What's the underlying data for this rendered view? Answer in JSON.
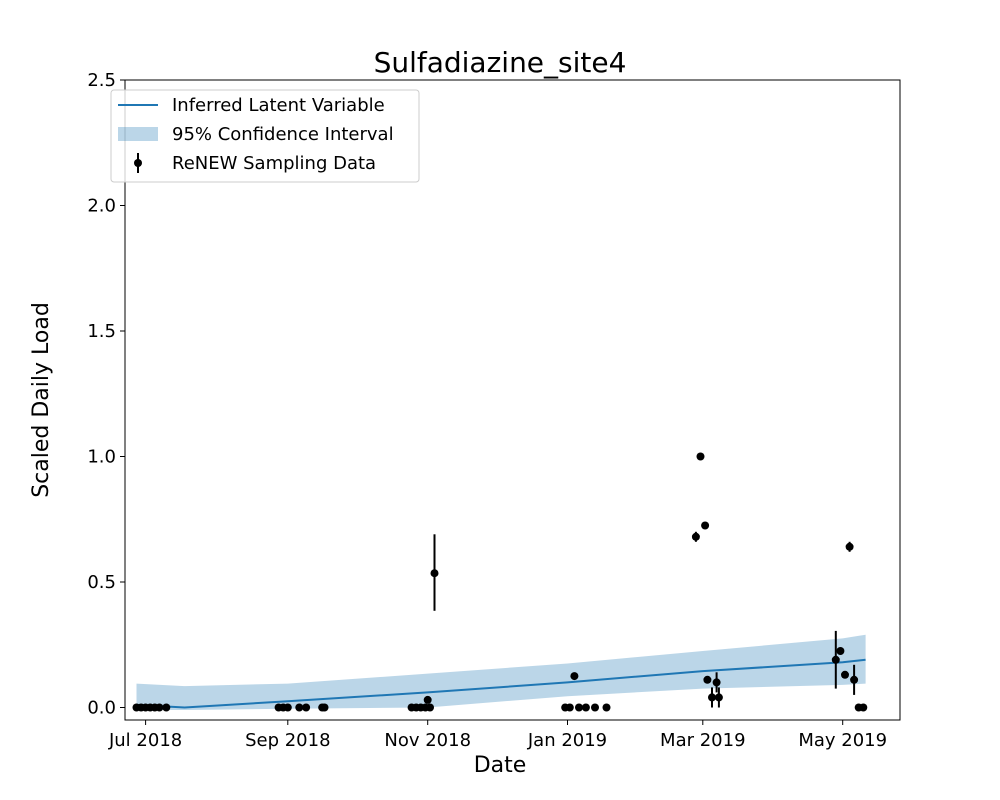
{
  "chart_data": {
    "type": "scatter",
    "title": "Sulfadiazine_site4",
    "xlabel": "Date",
    "ylabel": "Scaled Daily Load",
    "xlim": [
      "2018-06-22",
      "2019-05-26"
    ],
    "ylim": [
      -0.05,
      2.5
    ],
    "grid": false,
    "legend_position": "top-left",
    "x_ticks": [
      {
        "date": "2018-07-01",
        "label": "Jul 2018"
      },
      {
        "date": "2018-09-01",
        "label": "Sep 2018"
      },
      {
        "date": "2018-11-01",
        "label": "Nov 2018"
      },
      {
        "date": "2019-01-01",
        "label": "Jan 2019"
      },
      {
        "date": "2019-03-01",
        "label": "Mar 2019"
      },
      {
        "date": "2019-05-01",
        "label": "May 2019"
      }
    ],
    "y_ticks": [
      {
        "value": 0.0,
        "label": "0.0"
      },
      {
        "value": 0.5,
        "label": "0.5"
      },
      {
        "value": 1.0,
        "label": "1.0"
      },
      {
        "value": 1.5,
        "label": "1.5"
      },
      {
        "value": 2.0,
        "label": "2.0"
      },
      {
        "value": 2.5,
        "label": "2.5"
      }
    ],
    "legend": [
      {
        "label": "Inferred Latent Variable",
        "kind": "line"
      },
      {
        "label": "95% Confidence Interval",
        "kind": "band"
      },
      {
        "label": "ReNEW Sampling Data",
        "kind": "errorbar"
      }
    ],
    "series": [
      {
        "name": "Inferred Latent Variable",
        "kind": "line",
        "color": "#1f77b4",
        "points": [
          {
            "x": "2018-06-27",
            "y": 0.01
          },
          {
            "x": "2018-07-18",
            "y": 0.0
          },
          {
            "x": "2018-09-01",
            "y": 0.025
          },
          {
            "x": "2018-11-01",
            "y": 0.06
          },
          {
            "x": "2019-01-01",
            "y": 0.1
          },
          {
            "x": "2019-03-01",
            "y": 0.145
          },
          {
            "x": "2019-05-01",
            "y": 0.18
          },
          {
            "x": "2019-05-11",
            "y": 0.19
          }
        ]
      },
      {
        "name": "95% Confidence Interval",
        "kind": "band",
        "color": "#1f77b4",
        "points": [
          {
            "x": "2018-06-27",
            "low": -0.01,
            "high": 0.095
          },
          {
            "x": "2018-07-18",
            "low": -0.01,
            "high": 0.085
          },
          {
            "x": "2018-09-01",
            "low": -0.005,
            "high": 0.095
          },
          {
            "x": "2018-11-01",
            "low": 0.0,
            "high": 0.135
          },
          {
            "x": "2019-01-01",
            "low": 0.045,
            "high": 0.175
          },
          {
            "x": "2019-03-01",
            "low": 0.075,
            "high": 0.225
          },
          {
            "x": "2019-05-01",
            "low": 0.09,
            "high": 0.275
          },
          {
            "x": "2019-05-11",
            "low": 0.095,
            "high": 0.29
          }
        ]
      },
      {
        "name": "ReNEW Sampling Data",
        "kind": "errorbar",
        "color": "#000000",
        "points": [
          {
            "x": "2018-06-27",
            "y": 0.0
          },
          {
            "x": "2018-06-29",
            "y": 0.0
          },
          {
            "x": "2018-07-01",
            "y": 0.0
          },
          {
            "x": "2018-07-03",
            "y": 0.0
          },
          {
            "x": "2018-07-05",
            "y": 0.0
          },
          {
            "x": "2018-07-07",
            "y": 0.0
          },
          {
            "x": "2018-07-10",
            "y": 0.0
          },
          {
            "x": "2018-08-28",
            "y": 0.0
          },
          {
            "x": "2018-08-30",
            "y": 0.0
          },
          {
            "x": "2018-09-01",
            "y": 0.0
          },
          {
            "x": "2018-09-06",
            "y": 0.0
          },
          {
            "x": "2018-09-09",
            "y": 0.0
          },
          {
            "x": "2018-09-16",
            "y": 0.0
          },
          {
            "x": "2018-09-17",
            "y": 0.0
          },
          {
            "x": "2018-10-25",
            "y": 0.0
          },
          {
            "x": "2018-10-27",
            "y": 0.0
          },
          {
            "x": "2018-10-29",
            "y": 0.0
          },
          {
            "x": "2018-10-31",
            "y": 0.0
          },
          {
            "x": "2018-11-01",
            "y": 0.03
          },
          {
            "x": "2018-11-02",
            "y": 0.0
          },
          {
            "x": "2018-11-04",
            "y": 0.535,
            "low": 0.385,
            "high": 0.69
          },
          {
            "x": "2018-12-31",
            "y": 0.0
          },
          {
            "x": "2019-01-02",
            "y": 0.0
          },
          {
            "x": "2019-01-04",
            "y": 0.125
          },
          {
            "x": "2019-01-06",
            "y": 0.0
          },
          {
            "x": "2019-01-09",
            "y": 0.0
          },
          {
            "x": "2019-01-13",
            "y": 0.0
          },
          {
            "x": "2019-01-18",
            "y": 0.0
          },
          {
            "x": "2019-02-26",
            "y": 0.68,
            "low": 0.66,
            "high": 0.7
          },
          {
            "x": "2019-02-28",
            "y": 1.0
          },
          {
            "x": "2019-03-02",
            "y": 0.725
          },
          {
            "x": "2019-03-03",
            "y": 0.11
          },
          {
            "x": "2019-03-05",
            "y": 0.04,
            "low": 0.0,
            "high": 0.08
          },
          {
            "x": "2019-03-07",
            "y": 0.1,
            "low": 0.06,
            "high": 0.14
          },
          {
            "x": "2019-03-08",
            "y": 0.04,
            "low": 0.0,
            "high": 0.08
          },
          {
            "x": "2019-04-28",
            "y": 0.19,
            "low": 0.075,
            "high": 0.305
          },
          {
            "x": "2019-04-30",
            "y": 0.225
          },
          {
            "x": "2019-05-02",
            "y": 0.13
          },
          {
            "x": "2019-05-04",
            "y": 0.64,
            "low": 0.62,
            "high": 0.66
          },
          {
            "x": "2019-05-06",
            "y": 0.11,
            "low": 0.05,
            "high": 0.17
          },
          {
            "x": "2019-05-08",
            "y": 0.0
          },
          {
            "x": "2019-05-10",
            "y": 0.0
          }
        ]
      }
    ]
  }
}
